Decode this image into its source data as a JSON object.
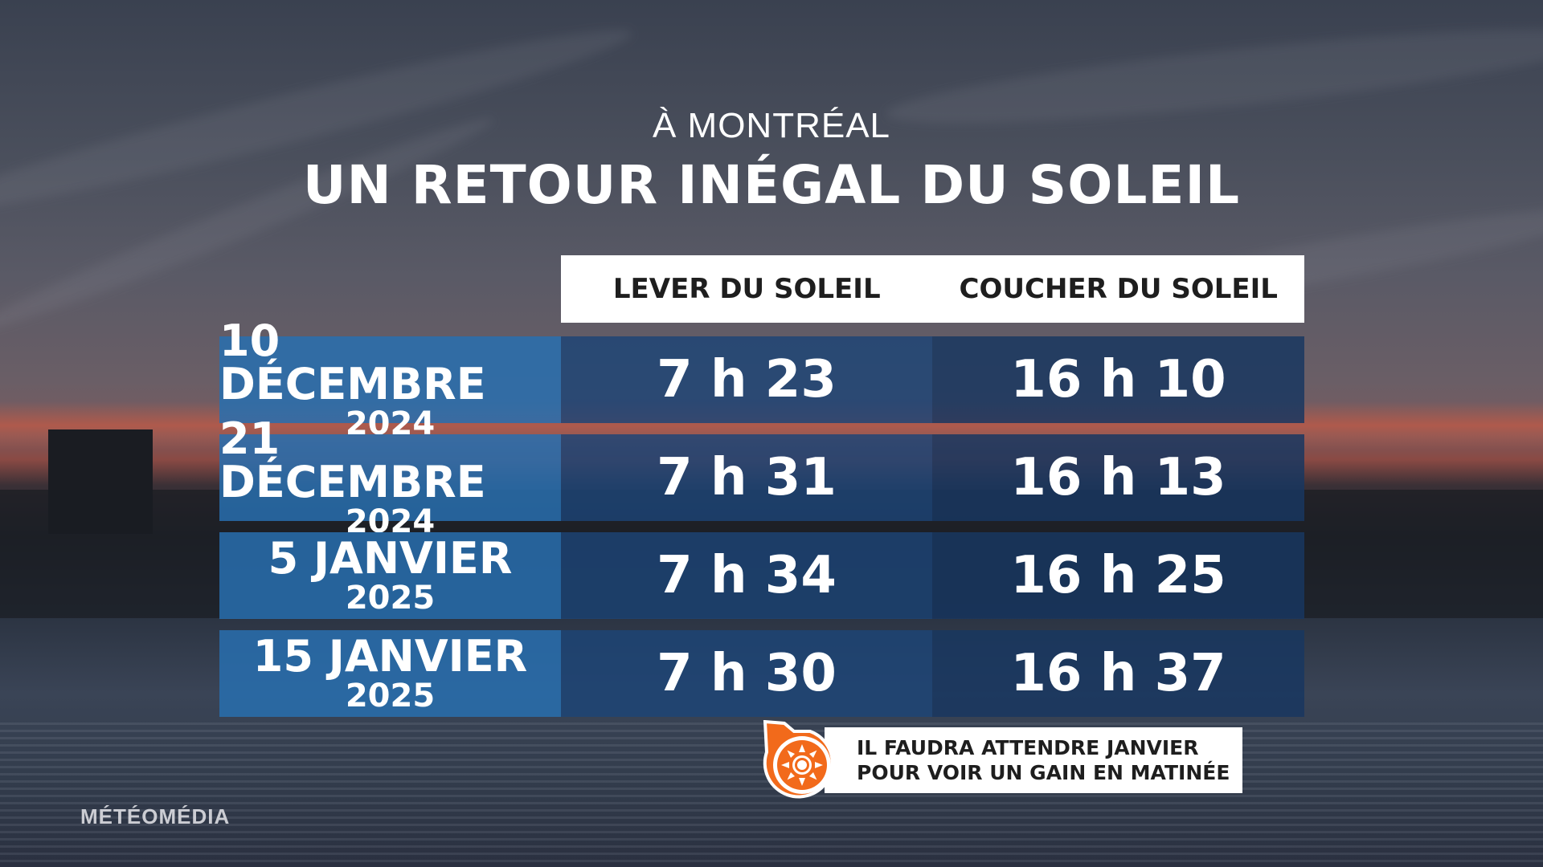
{
  "header": {
    "subtitle": "À MONTRÉAL",
    "title": "UN RETOUR INÉGAL DU SOLEIL"
  },
  "table": {
    "columns": [
      "LEVER DU SOLEIL",
      "COUCHER DU SOLEIL"
    ],
    "rows": [
      {
        "date": "10 DÉCEMBRE",
        "year": "2024",
        "sunrise": "7 h 23",
        "sunset": "16 h 10"
      },
      {
        "date": "21 DÉCEMBRE",
        "year": "2024",
        "sunrise": "7 h 31",
        "sunset": "16 h 13"
      },
      {
        "date": "5 JANVIER",
        "year": "2025",
        "sunrise": "7 h 34",
        "sunset": "16 h 25"
      },
      {
        "date": "15 JANVIER",
        "year": "2025",
        "sunrise": "7 h 30",
        "sunset": "16 h 37"
      }
    ]
  },
  "note": {
    "icon": "sun-icon",
    "line1": "IL FAUDRA ATTENDRE JANVIER",
    "line2": "POUR VOIR UN GAIN EN MATINÉE",
    "accent_color": "#f26a1b"
  },
  "brand": "MÉTÉOMÉDIA"
}
